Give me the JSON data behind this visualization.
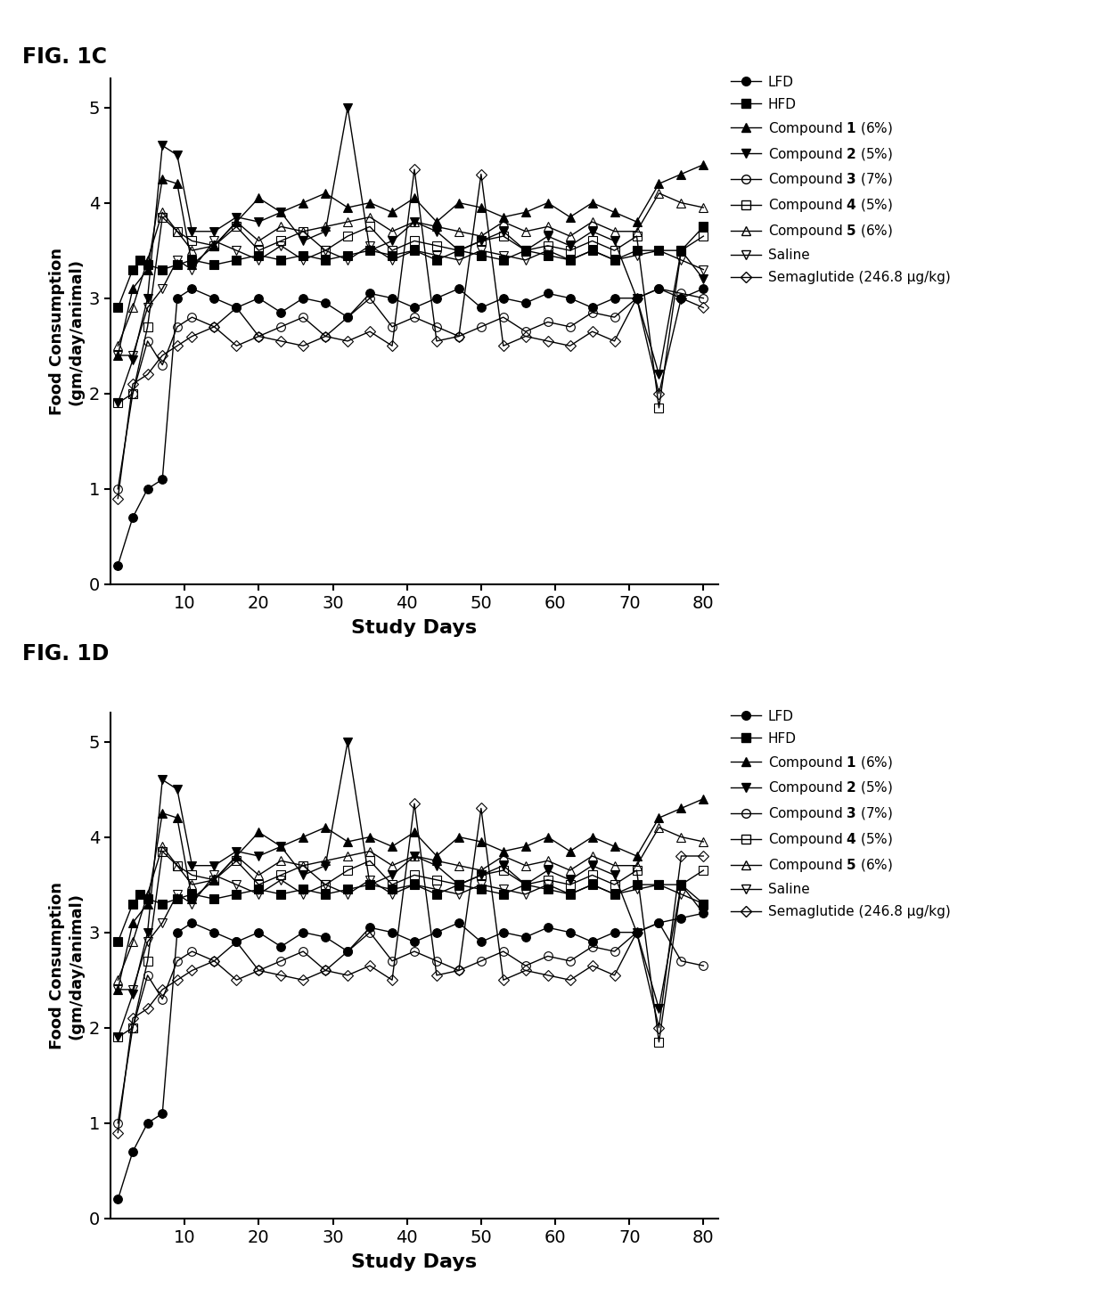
{
  "fig1c_title": "FIG. 1C",
  "fig1d_title": "FIG. 1D",
  "xlabel": "Study Days",
  "ylabel": "Food Consumption\n(gm/day/animal)",
  "ylim": [
    0,
    5.3
  ],
  "yticks": [
    0,
    1,
    2,
    3,
    4,
    5
  ],
  "xlim": [
    0,
    82
  ],
  "xticks": [
    10,
    20,
    30,
    40,
    50,
    60,
    70,
    80
  ],
  "series": {
    "LFD": {
      "x": [
        1,
        3,
        5,
        7,
        9,
        11,
        14,
        17,
        20,
        23,
        26,
        29,
        32,
        35,
        38,
        41,
        44,
        47,
        50,
        53,
        56,
        59,
        62,
        65,
        68,
        71,
        74,
        77,
        80
      ],
      "y1c": [
        0.2,
        0.7,
        1.0,
        1.1,
        3.0,
        3.1,
        3.0,
        2.9,
        3.0,
        2.85,
        3.0,
        2.95,
        2.8,
        3.05,
        3.0,
        2.9,
        3.0,
        3.1,
        2.9,
        3.0,
        2.95,
        3.05,
        3.0,
        2.9,
        3.0,
        3.0,
        3.1,
        3.0,
        3.1
      ],
      "y1d": [
        0.2,
        0.7,
        1.0,
        1.1,
        3.0,
        3.1,
        3.0,
        2.9,
        3.0,
        2.85,
        3.0,
        2.95,
        2.8,
        3.05,
        3.0,
        2.9,
        3.0,
        3.1,
        2.9,
        3.0,
        2.95,
        3.05,
        3.0,
        2.9,
        3.0,
        3.0,
        3.1,
        3.15,
        3.2
      ],
      "marker": "o",
      "fillstyle": "full",
      "ms": 7
    },
    "HFD": {
      "x": [
        1,
        3,
        4,
        5,
        7,
        9,
        11,
        14,
        17,
        20,
        23,
        26,
        29,
        32,
        35,
        38,
        41,
        44,
        47,
        50,
        53,
        56,
        59,
        62,
        65,
        68,
        71,
        74,
        77,
        80
      ],
      "y1c": [
        2.9,
        3.3,
        3.4,
        3.35,
        3.3,
        3.35,
        3.4,
        3.35,
        3.4,
        3.45,
        3.4,
        3.45,
        3.4,
        3.45,
        3.5,
        3.45,
        3.5,
        3.4,
        3.5,
        3.45,
        3.4,
        3.5,
        3.45,
        3.4,
        3.5,
        3.4,
        3.5,
        3.5,
        3.5,
        3.75
      ],
      "y1d": [
        2.9,
        3.3,
        3.4,
        3.35,
        3.3,
        3.35,
        3.4,
        3.35,
        3.4,
        3.45,
        3.4,
        3.45,
        3.4,
        3.45,
        3.5,
        3.45,
        3.5,
        3.4,
        3.5,
        3.45,
        3.4,
        3.5,
        3.45,
        3.4,
        3.5,
        3.4,
        3.5,
        3.5,
        3.5,
        3.3
      ],
      "marker": "s",
      "fillstyle": "full",
      "ms": 7
    },
    "Compound1": {
      "x": [
        1,
        3,
        5,
        7,
        9,
        11,
        14,
        17,
        20,
        23,
        26,
        29,
        32,
        35,
        38,
        41,
        44,
        47,
        50,
        53,
        56,
        59,
        62,
        65,
        68,
        71,
        74,
        77,
        80
      ],
      "y1c": [
        2.4,
        3.1,
        3.3,
        4.25,
        4.2,
        3.35,
        3.55,
        3.8,
        4.05,
        3.9,
        4.0,
        4.1,
        3.95,
        4.0,
        3.9,
        4.05,
        3.8,
        4.0,
        3.95,
        3.85,
        3.9,
        4.0,
        3.85,
        4.0,
        3.9,
        3.8,
        4.2,
        4.3,
        4.4
      ],
      "y1d": [
        2.4,
        3.1,
        3.3,
        4.25,
        4.2,
        3.35,
        3.55,
        3.8,
        4.05,
        3.9,
        4.0,
        4.1,
        3.95,
        4.0,
        3.9,
        4.05,
        3.8,
        4.0,
        3.95,
        3.85,
        3.9,
        4.0,
        3.85,
        4.0,
        3.9,
        3.8,
        4.2,
        4.3,
        4.4
      ],
      "marker": "^",
      "fillstyle": "full",
      "ms": 7
    },
    "Compound2": {
      "x": [
        1,
        3,
        5,
        7,
        9,
        11,
        14,
        17,
        20,
        23,
        26,
        29,
        32,
        35,
        38,
        41,
        44,
        47,
        50,
        53,
        56,
        59,
        62,
        65,
        68,
        71,
        74,
        77,
        80
      ],
      "y1c": [
        1.9,
        2.35,
        3.0,
        4.6,
        4.5,
        3.7,
        3.7,
        3.85,
        3.8,
        3.9,
        3.6,
        3.7,
        5.0,
        3.5,
        3.6,
        3.8,
        3.7,
        3.5,
        3.6,
        3.7,
        3.5,
        3.65,
        3.55,
        3.7,
        3.6,
        3.0,
        2.2,
        3.5,
        3.2
      ],
      "y1d": [
        1.9,
        2.35,
        3.0,
        4.6,
        4.5,
        3.7,
        3.7,
        3.85,
        3.8,
        3.9,
        3.6,
        3.7,
        5.0,
        3.5,
        3.6,
        3.8,
        3.7,
        3.5,
        3.6,
        3.7,
        3.5,
        3.65,
        3.55,
        3.7,
        3.6,
        3.0,
        2.2,
        3.5,
        3.2
      ],
      "marker": "v",
      "fillstyle": "full",
      "ms": 7
    },
    "Compound3": {
      "x": [
        1,
        3,
        5,
        7,
        9,
        11,
        14,
        17,
        20,
        23,
        26,
        29,
        32,
        35,
        38,
        41,
        44,
        47,
        50,
        53,
        56,
        59,
        62,
        65,
        68,
        71,
        74,
        77,
        80
      ],
      "y1c": [
        1.0,
        2.0,
        2.55,
        2.3,
        2.7,
        2.8,
        2.7,
        2.9,
        2.6,
        2.7,
        2.8,
        2.6,
        2.8,
        3.0,
        2.7,
        2.8,
        2.7,
        2.6,
        2.7,
        2.8,
        2.65,
        2.75,
        2.7,
        2.85,
        2.8,
        3.0,
        3.1,
        3.05,
        3.0
      ],
      "y1d": [
        1.0,
        2.0,
        2.55,
        2.3,
        2.7,
        2.8,
        2.7,
        2.9,
        2.6,
        2.7,
        2.8,
        2.6,
        2.8,
        3.0,
        2.7,
        2.8,
        2.7,
        2.6,
        2.7,
        2.8,
        2.65,
        2.75,
        2.7,
        2.85,
        2.8,
        3.0,
        3.1,
        2.7,
        2.65
      ],
      "marker": "o",
      "fillstyle": "none",
      "ms": 7
    },
    "Compound4": {
      "x": [
        1,
        3,
        5,
        7,
        9,
        11,
        14,
        17,
        20,
        23,
        26,
        29,
        32,
        35,
        38,
        41,
        44,
        47,
        50,
        53,
        56,
        59,
        62,
        65,
        68,
        71,
        74,
        77,
        80
      ],
      "y1c": [
        1.9,
        2.0,
        2.7,
        3.85,
        3.7,
        3.6,
        3.55,
        3.75,
        3.5,
        3.6,
        3.7,
        3.5,
        3.65,
        3.75,
        3.5,
        3.6,
        3.55,
        3.5,
        3.6,
        3.65,
        3.5,
        3.55,
        3.5,
        3.6,
        3.5,
        3.65,
        1.85,
        3.5,
        3.65
      ],
      "y1d": [
        1.9,
        2.0,
        2.7,
        3.85,
        3.7,
        3.6,
        3.55,
        3.75,
        3.5,
        3.6,
        3.7,
        3.5,
        3.65,
        3.75,
        3.5,
        3.6,
        3.55,
        3.5,
        3.6,
        3.65,
        3.5,
        3.55,
        3.5,
        3.6,
        3.5,
        3.65,
        1.85,
        3.5,
        3.65
      ],
      "marker": "s",
      "fillstyle": "none",
      "ms": 7
    },
    "Compound5": {
      "x": [
        1,
        3,
        5,
        7,
        9,
        11,
        14,
        17,
        20,
        23,
        26,
        29,
        32,
        35,
        38,
        41,
        44,
        47,
        50,
        53,
        56,
        59,
        62,
        65,
        68,
        71,
        74,
        77,
        80
      ],
      "y1c": [
        2.5,
        2.9,
        3.4,
        3.9,
        3.7,
        3.5,
        3.55,
        3.8,
        3.6,
        3.75,
        3.7,
        3.75,
        3.8,
        3.85,
        3.7,
        3.8,
        3.75,
        3.7,
        3.65,
        3.8,
        3.7,
        3.75,
        3.65,
        3.8,
        3.7,
        3.7,
        4.1,
        4.0,
        3.95
      ],
      "y1d": [
        2.5,
        2.9,
        3.4,
        3.9,
        3.7,
        3.5,
        3.55,
        3.8,
        3.6,
        3.75,
        3.7,
        3.75,
        3.8,
        3.85,
        3.7,
        3.8,
        3.75,
        3.7,
        3.65,
        3.8,
        3.7,
        3.75,
        3.65,
        3.8,
        3.7,
        3.7,
        4.1,
        4.0,
        3.95
      ],
      "marker": "^",
      "fillstyle": "none",
      "ms": 7
    },
    "Saline": {
      "x": [
        1,
        3,
        5,
        7,
        9,
        11,
        14,
        17,
        20,
        23,
        26,
        29,
        32,
        35,
        38,
        41,
        44,
        47,
        50,
        53,
        56,
        59,
        62,
        65,
        68,
        71,
        74,
        77,
        80
      ],
      "y1c": [
        2.4,
        2.4,
        2.9,
        3.1,
        3.4,
        3.3,
        3.6,
        3.5,
        3.4,
        3.55,
        3.4,
        3.5,
        3.4,
        3.55,
        3.4,
        3.5,
        3.45,
        3.4,
        3.5,
        3.45,
        3.4,
        3.5,
        3.4,
        3.5,
        3.4,
        3.45,
        3.5,
        3.4,
        3.3
      ],
      "y1d": [
        2.4,
        2.4,
        2.9,
        3.1,
        3.4,
        3.3,
        3.6,
        3.5,
        3.4,
        3.55,
        3.4,
        3.5,
        3.4,
        3.55,
        3.4,
        3.5,
        3.45,
        3.4,
        3.5,
        3.45,
        3.4,
        3.5,
        3.4,
        3.5,
        3.4,
        3.45,
        3.5,
        3.4,
        3.3
      ],
      "marker": "v",
      "fillstyle": "none",
      "ms": 7
    },
    "Semaglutide": {
      "x": [
        1,
        3,
        5,
        7,
        9,
        11,
        14,
        17,
        20,
        23,
        26,
        29,
        32,
        35,
        38,
        41,
        44,
        47,
        50,
        53,
        56,
        59,
        62,
        65,
        68,
        71,
        74,
        77,
        80
      ],
      "y1c": [
        0.9,
        2.1,
        2.2,
        2.4,
        2.5,
        2.6,
        2.7,
        2.5,
        2.6,
        2.55,
        2.5,
        2.6,
        2.55,
        2.65,
        2.5,
        4.35,
        2.55,
        2.6,
        4.3,
        2.5,
        2.6,
        2.55,
        2.5,
        2.65,
        2.55,
        3.0,
        2.0,
        3.0,
        2.9
      ],
      "y1d": [
        0.9,
        2.1,
        2.2,
        2.4,
        2.5,
        2.6,
        2.7,
        2.5,
        2.6,
        2.55,
        2.5,
        2.6,
        2.55,
        2.65,
        2.5,
        4.35,
        2.55,
        2.6,
        4.3,
        2.5,
        2.6,
        2.55,
        2.5,
        2.65,
        2.55,
        3.0,
        2.0,
        3.8,
        3.8
      ],
      "marker": "D",
      "fillstyle": "none",
      "ms": 6
    }
  }
}
